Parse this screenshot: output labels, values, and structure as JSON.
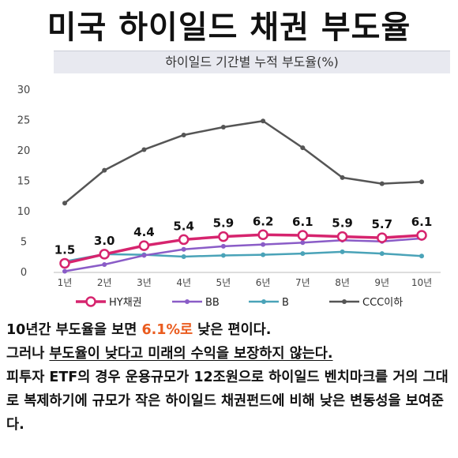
{
  "headline": "미국 하이일드 채권 부도율",
  "chart_data": {
    "type": "line",
    "title": "하이일드 기간별 누적 부도율(%)",
    "categories": [
      "1년",
      "2년",
      "3년",
      "4년",
      "5년",
      "6년",
      "7년",
      "8년",
      "9년",
      "10년"
    ],
    "ylim": [
      0,
      30
    ],
    "yticks": [
      0,
      5,
      10,
      15,
      20,
      25,
      30
    ],
    "grid": false,
    "legend_position": "bottom",
    "series": [
      {
        "name": "HY채권",
        "color": "#d6246e",
        "marker": "hollow-circle",
        "values": [
          1.5,
          3.0,
          4.4,
          5.4,
          5.9,
          6.2,
          6.1,
          5.9,
          5.7,
          6.1
        ],
        "labels": [
          "1.5",
          "3.0",
          "4.4",
          "5.4",
          "5.9",
          "6.2",
          "6.1",
          "5.9",
          "5.7",
          "6.1"
        ]
      },
      {
        "name": "BB",
        "color": "#8a5cc7",
        "marker": "dot",
        "values": [
          0.2,
          1.3,
          2.8,
          3.8,
          4.3,
          4.6,
          4.9,
          5.3,
          5.1,
          5.6
        ]
      },
      {
        "name": "B",
        "color": "#4aa3b8",
        "marker": "dot",
        "values": [
          1.8,
          3.0,
          2.9,
          2.6,
          2.8,
          2.9,
          3.1,
          3.4,
          3.1,
          2.7
        ]
      },
      {
        "name": "CCC이하",
        "color": "#555555",
        "marker": "dot",
        "values": [
          11.4,
          16.8,
          20.2,
          22.6,
          23.9,
          24.9,
          20.5,
          15.6,
          14.6,
          14.9
        ]
      }
    ]
  },
  "body": {
    "line1_pre": "10년간 부도율을 보면 ",
    "line1_highlight": "6.1%로",
    "line1_post": " 낮은 편이다.",
    "line2_pre": "그러나 ",
    "line2_underlined": "부도율이 낮다고 미래의 수익을 보장하지 않는다.",
    "line3": "피투자 ETF의 경우 운용규모가 12조원으로 하이일드 벤치마크를 거의 그대로 복제하기에 규모가 작은 하이일드 채권펀드에 비해 낮은 변동성을 보여준다."
  },
  "colors": {
    "highlight": "#ea5c1f",
    "title_bar": "#e8e9f0"
  }
}
